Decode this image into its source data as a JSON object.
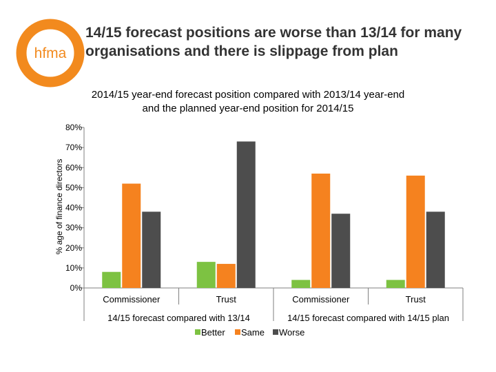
{
  "brand": {
    "logo_text": "hfma",
    "accent_color": "#F28A1E"
  },
  "slide": {
    "headline": "14/15 forecast positions are worse than 13/14 for many organisations and there is slippage from plan"
  },
  "chart_data": {
    "type": "bar",
    "title": "2014/15 year-end forecast position compared with 2013/14 year-end and the planned year-end position for 2014/15",
    "ylabel": "% age of finance directors",
    "xlabel": "",
    "ylim": [
      0,
      80
    ],
    "yticks": [
      0,
      10,
      20,
      30,
      40,
      50,
      60,
      70,
      80
    ],
    "ytick_labels": [
      "0%",
      "10%",
      "20%",
      "30%",
      "40%",
      "50%",
      "60%",
      "70%",
      "80%"
    ],
    "grid": false,
    "categories": [
      "Commissioner",
      "Trust",
      "Commissioner",
      "Trust"
    ],
    "groups": [
      {
        "label": "14/15 forecast compared with 13/14",
        "categories": [
          0,
          1
        ]
      },
      {
        "label": "14/15 forecast compared with 14/15 plan",
        "categories": [
          2,
          3
        ]
      }
    ],
    "series": [
      {
        "name": "Better",
        "color": "#7DC242",
        "values": [
          8,
          13,
          4,
          4
        ]
      },
      {
        "name": "Same",
        "color": "#F5821F",
        "values": [
          52,
          12,
          57,
          56
        ]
      },
      {
        "name": "Worse",
        "color": "#4D4D4D",
        "values": [
          38,
          73,
          37,
          38
        ]
      }
    ],
    "legend_position": "bottom"
  }
}
